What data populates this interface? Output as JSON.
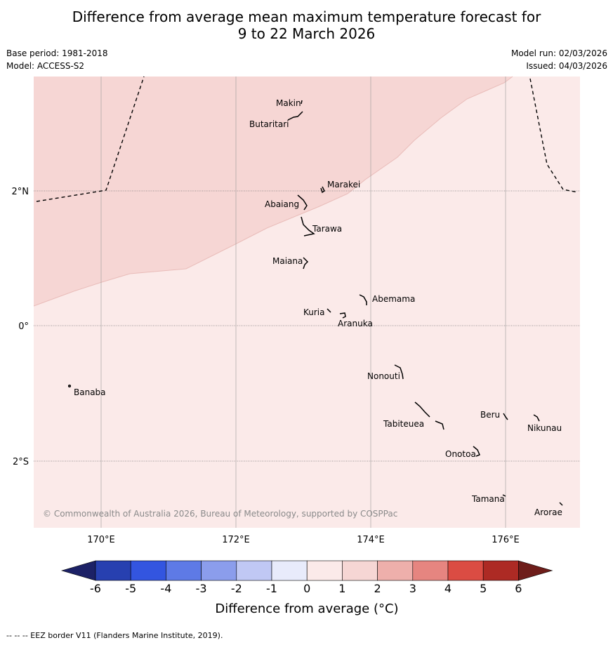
{
  "title_line1": "Difference from average mean maximum temperature forecast for",
  "title_line2": "9 to 22 March 2026",
  "meta_left": [
    "Base period: 1981-2018",
    "Model: ACCESS-S2"
  ],
  "meta_right": [
    "Model run: 02/03/2026",
    "Issued: 04/03/2026"
  ],
  "copyright": "© Commonwealth of Australia 2026, Bureau of Meteorology, supported by COSPPac",
  "lon_labels": [
    "170°E",
    "172°E",
    "174°E",
    "176°E"
  ],
  "lat_labels": [
    "2°N",
    "0°",
    "2°S"
  ],
  "islands": [
    "Makin",
    "Butaritari",
    "Marakei",
    "Abaiang",
    "Tarawa",
    "Maiana",
    "Abemama",
    "Kuria",
    "Aranuka",
    "Nonouti",
    "Banaba",
    "Beru",
    "Nikunau",
    "Tabiteuea",
    "Onotoa",
    "Tamana",
    "Arorae"
  ],
  "colorbar": {
    "ticks": [
      "-6",
      "-5",
      "-4",
      "-3",
      "-2",
      "-1",
      "0",
      "1",
      "2",
      "3",
      "4",
      "5",
      "6"
    ],
    "colors": [
      "#1c2166",
      "#2740b0",
      "#3355e0",
      "#5e7ae6",
      "#8b9dec",
      "#c0c8f4",
      "#e8ebfb",
      "#fbeae9",
      "#f6d6d4",
      "#eeafab",
      "#e68580",
      "#db4c43",
      "#ad2a24",
      "#6e1d1a"
    ],
    "label": "Difference from average (°C)"
  },
  "legend_note": "--  --  -- EEZ border V11 (Flanders Marine Institute, 2019).",
  "map_fill": {
    "band_1_2": "#f6d6d4",
    "band_0_1": "#fbeae9"
  }
}
